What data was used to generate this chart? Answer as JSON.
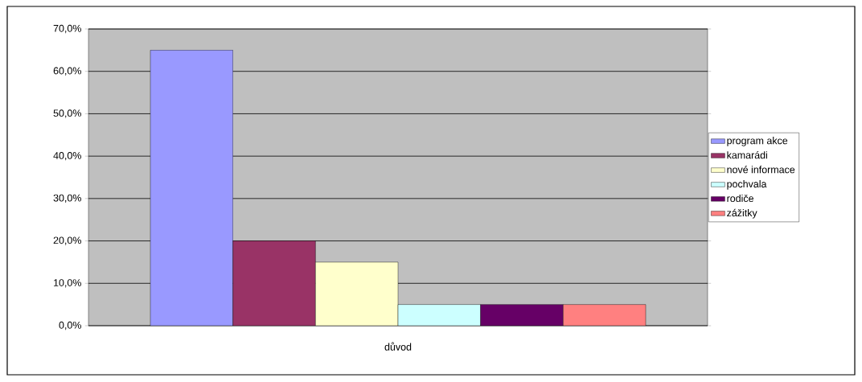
{
  "chart_data": {
    "type": "bar",
    "categories": [
      "důvod"
    ],
    "series": [
      {
        "name": "program akce",
        "color": "#9999ff",
        "values": [
          65
        ]
      },
      {
        "name": "kamarádi",
        "color": "#993366",
        "values": [
          20
        ]
      },
      {
        "name": "nové informace",
        "color": "#ffffcc",
        "values": [
          15
        ]
      },
      {
        "name": "pochvala",
        "color": "#ccffff",
        "values": [
          5
        ]
      },
      {
        "name": "rodiče",
        "color": "#660066",
        "values": [
          5
        ]
      },
      {
        "name": "zážitky",
        "color": "#ff8080",
        "values": [
          5
        ]
      }
    ],
    "ylim": [
      0,
      70
    ],
    "yticks": [
      {
        "value": 0,
        "label": "0,0%"
      },
      {
        "value": 10,
        "label": "10,0%"
      },
      {
        "value": 20,
        "label": "20,0%"
      },
      {
        "value": 30,
        "label": "30,0%"
      },
      {
        "value": 40,
        "label": "40,0%"
      },
      {
        "value": 50,
        "label": "50,0%"
      },
      {
        "value": 60,
        "label": "60,0%"
      },
      {
        "value": 70,
        "label": "70,0%"
      }
    ],
    "grid": "y",
    "legend": "right"
  }
}
